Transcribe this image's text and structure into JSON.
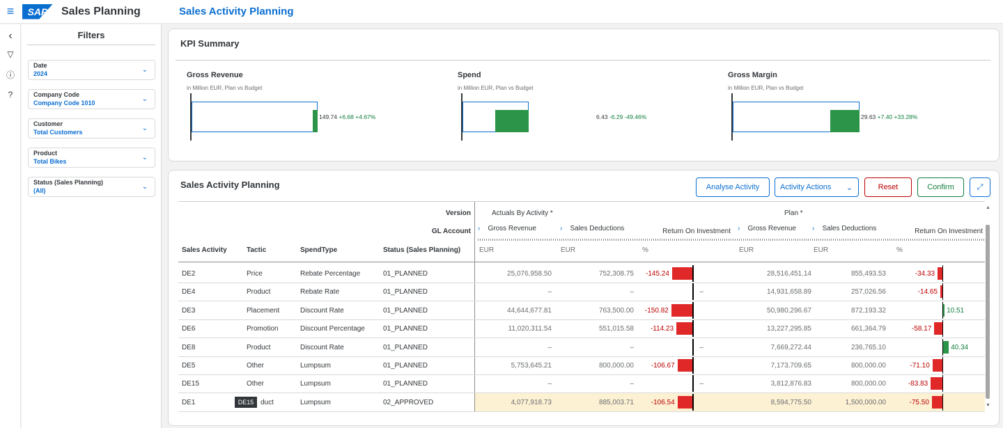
{
  "shell": {
    "app_title": "Sales Planning",
    "page_title": "Sales Activity Planning",
    "logo_text": "SAP"
  },
  "filters": {
    "title": "Filters",
    "items": [
      {
        "label": "Date",
        "value": "2024"
      },
      {
        "label": "Company Code",
        "value": "Company Code 1010"
      },
      {
        "label": "Customer",
        "value": "Total Customers"
      },
      {
        "label": "Product",
        "value": "Total Bikes"
      },
      {
        "label": "Status (Sales Planning)",
        "value": "(All)"
      }
    ]
  },
  "kpi": {
    "title": "KPI Summary",
    "items": [
      {
        "title": "Gross Revenue",
        "subtitle": "in Million EUR, Plan vs Budget",
        "value": "149.74",
        "delta": "+6.68",
        "pct": "+4.67%",
        "bar_fraction": 0.04
      },
      {
        "title": "Spend",
        "subtitle": "in Million EUR, Plan vs Budget",
        "value": "6.43",
        "delta": "-6.29",
        "pct": "-49.46%",
        "bar_fraction": 0.5
      },
      {
        "title": "Gross Margin",
        "subtitle": "in Million EUR, Plan vs Budget",
        "value": "29.63",
        "delta": "+7.40",
        "pct": "+33.28%",
        "bar_fraction": 0.23
      }
    ]
  },
  "sap": {
    "title": "Sales Activity Planning",
    "buttons": {
      "analyse": "Analyse Activity",
      "actions": "Activity Actions",
      "reset": "Reset",
      "confirm": "Confirm"
    },
    "header": {
      "version_label": "Version",
      "gl_label": "GL Account",
      "actuals": "Actuals By Activity *",
      "plan": "Plan *",
      "gross_revenue": "Gross Revenue",
      "sales_deductions": "Sales Deductions",
      "roi": "Return On Investment",
      "eur": "EUR",
      "pct": "%",
      "cols": [
        "Sales Activity",
        "Tactic",
        "SpendType",
        "Status (Sales Planning)"
      ]
    },
    "rows": [
      {
        "activity": "DE2",
        "tactic": "Price",
        "spend": "Rebate Percentage",
        "status": "01_PLANNED",
        "a_gr": "25,076,958.50",
        "a_sd": "752,308.75",
        "a_roi": "-145.24",
        "p_gr": "28,516,451.14",
        "p_sd": "855,493.53",
        "p_roi": "-34.33"
      },
      {
        "activity": "DE4",
        "tactic": "Product",
        "spend": "Rebate Rate",
        "status": "01_PLANNED",
        "a_gr": "–",
        "a_sd": "–",
        "a_roi": "–",
        "p_gr": "14,931,658.89",
        "p_sd": "257,026.56",
        "p_roi": "-14.65"
      },
      {
        "activity": "DE3",
        "tactic": "Placement",
        "spend": "Discount Rate",
        "status": "01_PLANNED",
        "a_gr": "44,644,677.81",
        "a_sd": "763,500.00",
        "a_roi": "-150.82",
        "p_gr": "50,980,296.67",
        "p_sd": "872,193.32",
        "p_roi": "10.51"
      },
      {
        "activity": "DE6",
        "tactic": "Promotion",
        "spend": "Discount Percentage",
        "status": "01_PLANNED",
        "a_gr": "11,020,311.54",
        "a_sd": "551,015.58",
        "a_roi": "-114.23",
        "p_gr": "13,227,295.85",
        "p_sd": "661,364.79",
        "p_roi": "-58.17"
      },
      {
        "activity": "DE8",
        "tactic": "Product",
        "spend": "Discount Rate",
        "status": "01_PLANNED",
        "a_gr": "–",
        "a_sd": "–",
        "a_roi": "–",
        "p_gr": "7,669,272.44",
        "p_sd": "236,765.10",
        "p_roi": "40.34"
      },
      {
        "activity": "DE5",
        "tactic": "Other",
        "spend": "Lumpsum",
        "status": "01_PLANNED",
        "a_gr": "5,753,645.21",
        "a_sd": "800,000.00",
        "a_roi": "-106.67",
        "p_gr": "7,173,709.65",
        "p_sd": "800,000.00",
        "p_roi": "-71.10"
      },
      {
        "activity": "DE15",
        "tactic": "Other",
        "spend": "Lumpsum",
        "status": "01_PLANNED",
        "a_gr": "–",
        "a_sd": "–",
        "a_roi": "–",
        "p_gr": "3,812,876.83",
        "p_sd": "800,000.00",
        "p_roi": "-83.83"
      },
      {
        "activity": "DE1",
        "tactic": "duct",
        "spend": "Lumpsum",
        "status": "02_APPROVED",
        "a_gr": "4,077,918.73",
        "a_sd": "885,003.71",
        "a_roi": "-106.54",
        "p_gr": "8,594,775.50",
        "p_sd": "1,500,000.00",
        "p_roi": "-75.50"
      }
    ],
    "tooltip": "DE15"
  }
}
